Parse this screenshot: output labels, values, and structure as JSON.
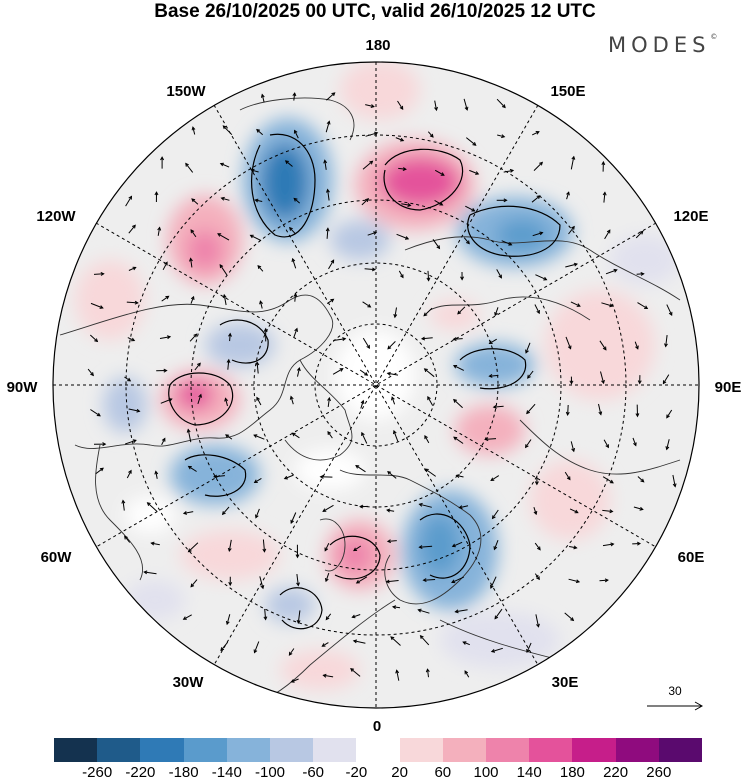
{
  "title": "Base 26/10/2025 00 UTC, valid 26/10/2025 12 UTC",
  "logo": "MODES",
  "logo_mark": "©",
  "map": {
    "projection": "north polar stereographic",
    "longitude_labels": {
      "top": "180",
      "top_left": "150W",
      "top_right": "150E",
      "upper_left": "120W",
      "upper_right": "120E",
      "left": "90W",
      "right": "90E",
      "lower_left": "60W",
      "lower_right": "60E",
      "bottom_left": "30W",
      "bottom_right": "30E",
      "bottom": "0"
    },
    "reference_vector_label": "30"
  },
  "colorbar": {
    "colors": [
      "#14324f",
      "#1f5b8a",
      "#2f7ab6",
      "#5a9bcc",
      "#86b3da",
      "#b8c8e3",
      "#e1e1ee",
      "#ffffff",
      "#f8d8da",
      "#f4b0bd",
      "#ee83ab",
      "#e4529b",
      "#c61e8a",
      "#8f0b7e",
      "#5a0a6e"
    ],
    "tick_labels": [
      "-260",
      "-220",
      "-180",
      "-140",
      "-100",
      "-60",
      "-20",
      "20",
      "60",
      "100",
      "140",
      "180",
      "220",
      "260"
    ]
  }
}
